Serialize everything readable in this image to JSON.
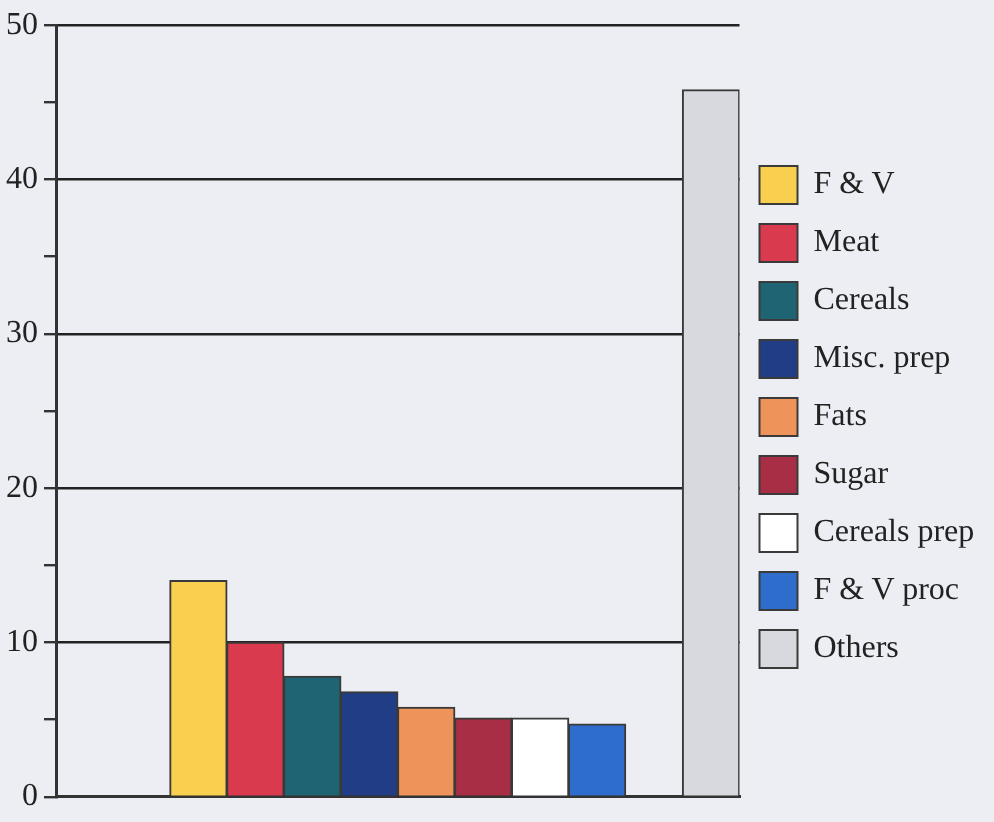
{
  "chart_data": {
    "type": "bar",
    "categories": [
      null,
      null,
      null,
      null,
      null,
      null,
      null,
      null,
      null,
      null,
      null,
      null
    ],
    "series": [
      {
        "name": "F & V",
        "color": "#f9cf4f",
        "values": [
          null,
          null,
          14,
          null,
          null,
          null,
          null,
          null,
          null,
          null,
          null,
          null
        ]
      },
      {
        "name": "Meat",
        "color": "#d93a4e",
        "values": [
          null,
          null,
          null,
          10,
          null,
          null,
          null,
          null,
          null,
          null,
          null,
          null
        ]
      },
      {
        "name": "Cereals",
        "color": "#1f6472",
        "values": [
          null,
          null,
          null,
          null,
          7.8,
          null,
          null,
          null,
          null,
          null,
          null,
          null
        ]
      },
      {
        "name": "Misc. prep",
        "color": "#213d86",
        "values": [
          null,
          null,
          null,
          null,
          null,
          6.8,
          null,
          null,
          null,
          null,
          null,
          null
        ]
      },
      {
        "name": "Fats",
        "color": "#ee935a",
        "values": [
          null,
          null,
          null,
          null,
          null,
          null,
          5.8,
          null,
          null,
          null,
          null,
          null
        ]
      },
      {
        "name": "Sugar",
        "color": "#a82e45",
        "values": [
          null,
          null,
          null,
          null,
          null,
          null,
          null,
          5.1,
          null,
          null,
          null,
          null
        ]
      },
      {
        "name": "Cereals prep",
        "color": "#ffffff",
        "values": [
          null,
          null,
          null,
          null,
          null,
          null,
          null,
          null,
          5.1,
          null,
          null,
          null
        ]
      },
      {
        "name": "F & V proc",
        "color": "#2f6dcc",
        "values": [
          null,
          null,
          null,
          null,
          null,
          null,
          null,
          null,
          null,
          4.7,
          null,
          null
        ]
      },
      {
        "name": "Others",
        "color": "#d8d9df",
        "values": [
          null,
          null,
          null,
          null,
          null,
          null,
          null,
          null,
          null,
          null,
          null,
          45.8
        ]
      }
    ],
    "ylim": [
      0,
      50
    ],
    "yticks": [
      0,
      {
        "value": 5,
        "label": null
      },
      10,
      {
        "value": 15,
        "label": null
      },
      20,
      {
        "value": 25,
        "label": null
      },
      30,
      {
        "value": 35,
        "label": null
      },
      40,
      {
        "value": 45,
        "label": null
      },
      50
    ],
    "grid": "y",
    "legend": "right"
  }
}
